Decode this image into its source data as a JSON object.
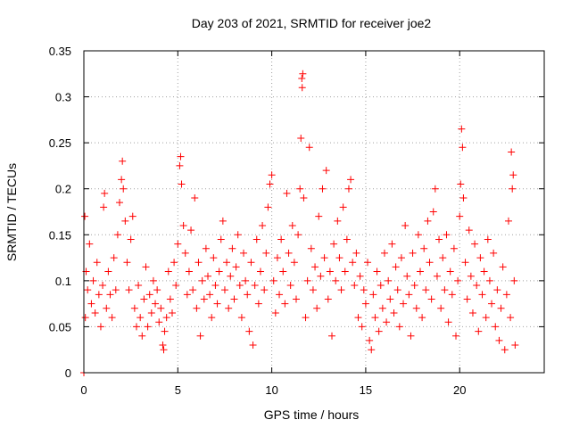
{
  "chart_data": {
    "type": "scatter",
    "title": "Day 203 of 2021, SRMTID for receiver joe2",
    "xlabel": "GPS time / hours",
    "ylabel": "SRMTID / TECUs",
    "xlim": [
      0,
      24.5
    ],
    "ylim": [
      0,
      0.35
    ],
    "x_ticks": [
      0,
      5,
      10,
      15,
      20
    ],
    "x_tick_labels": [
      "0",
      "5",
      "10",
      "15",
      "20"
    ],
    "y_ticks": [
      0,
      0.05,
      0.1,
      0.15,
      0.2,
      0.25,
      0.3,
      0.35
    ],
    "y_tick_labels": [
      "0",
      "0.05",
      "0.1",
      "0.15",
      "0.2",
      "0.25",
      "0.3",
      "0.35"
    ],
    "grid": true,
    "marker": "plus",
    "color": "#ff0000",
    "series": [
      {
        "name": "SRMTID",
        "points": [
          [
            0.0,
            0.0
          ],
          [
            0.05,
            0.17
          ],
          [
            0.08,
            0.06
          ],
          [
            0.12,
            0.11
          ],
          [
            0.2,
            0.09
          ],
          [
            0.3,
            0.14
          ],
          [
            0.4,
            0.075
          ],
          [
            0.5,
            0.1
          ],
          [
            0.6,
            0.065
          ],
          [
            0.7,
            0.12
          ],
          [
            0.8,
            0.085
          ],
          [
            0.9,
            0.05
          ],
          [
            1.0,
            0.095
          ],
          [
            1.05,
            0.18
          ],
          [
            1.1,
            0.195
          ],
          [
            1.2,
            0.07
          ],
          [
            1.3,
            0.11
          ],
          [
            1.4,
            0.085
          ],
          [
            1.5,
            0.06
          ],
          [
            1.6,
            0.125
          ],
          [
            1.7,
            0.09
          ],
          [
            1.8,
            0.15
          ],
          [
            1.9,
            0.185
          ],
          [
            2.0,
            0.21
          ],
          [
            2.05,
            0.23
          ],
          [
            2.1,
            0.2
          ],
          [
            2.2,
            0.165
          ],
          [
            2.3,
            0.12
          ],
          [
            2.4,
            0.09
          ],
          [
            2.5,
            0.145
          ],
          [
            2.6,
            0.17
          ],
          [
            2.7,
            0.07
          ],
          [
            2.8,
            0.05
          ],
          [
            2.9,
            0.095
          ],
          [
            3.0,
            0.06
          ],
          [
            3.1,
            0.04
          ],
          [
            3.2,
            0.08
          ],
          [
            3.3,
            0.115
          ],
          [
            3.4,
            0.05
          ],
          [
            3.5,
            0.085
          ],
          [
            3.6,
            0.065
          ],
          [
            3.7,
            0.1
          ],
          [
            3.8,
            0.075
          ],
          [
            3.9,
            0.09
          ],
          [
            4.0,
            0.055
          ],
          [
            4.1,
            0.07
          ],
          [
            4.2,
            0.03
          ],
          [
            4.25,
            0.025
          ],
          [
            4.3,
            0.045
          ],
          [
            4.4,
            0.06
          ],
          [
            4.5,
            0.11
          ],
          [
            4.6,
            0.08
          ],
          [
            4.7,
            0.065
          ],
          [
            4.8,
            0.12
          ],
          [
            4.9,
            0.095
          ],
          [
            5.0,
            0.14
          ],
          [
            5.1,
            0.225
          ],
          [
            5.15,
            0.235
          ],
          [
            5.2,
            0.205
          ],
          [
            5.3,
            0.16
          ],
          [
            5.4,
            0.13
          ],
          [
            5.5,
            0.085
          ],
          [
            5.6,
            0.11
          ],
          [
            5.7,
            0.155
          ],
          [
            5.8,
            0.09
          ],
          [
            5.9,
            0.19
          ],
          [
            6.0,
            0.07
          ],
          [
            6.1,
            0.12
          ],
          [
            6.2,
            0.04
          ],
          [
            6.3,
            0.1
          ],
          [
            6.4,
            0.08
          ],
          [
            6.5,
            0.135
          ],
          [
            6.6,
            0.105
          ],
          [
            6.7,
            0.085
          ],
          [
            6.8,
            0.06
          ],
          [
            6.9,
            0.125
          ],
          [
            7.0,
            0.095
          ],
          [
            7.1,
            0.075
          ],
          [
            7.2,
            0.11
          ],
          [
            7.3,
            0.145
          ],
          [
            7.4,
            0.165
          ],
          [
            7.5,
            0.09
          ],
          [
            7.6,
            0.12
          ],
          [
            7.7,
            0.07
          ],
          [
            7.8,
            0.105
          ],
          [
            7.9,
            0.135
          ],
          [
            8.0,
            0.08
          ],
          [
            8.1,
            0.115
          ],
          [
            8.2,
            0.15
          ],
          [
            8.3,
            0.095
          ],
          [
            8.4,
            0.06
          ],
          [
            8.5,
            0.13
          ],
          [
            8.6,
            0.1
          ],
          [
            8.7,
            0.085
          ],
          [
            8.8,
            0.045
          ],
          [
            8.9,
            0.12
          ],
          [
            9.0,
            0.03
          ],
          [
            9.1,
            0.095
          ],
          [
            9.2,
            0.145
          ],
          [
            9.3,
            0.075
          ],
          [
            9.4,
            0.11
          ],
          [
            9.5,
            0.16
          ],
          [
            9.6,
            0.09
          ],
          [
            9.7,
            0.13
          ],
          [
            9.8,
            0.18
          ],
          [
            9.9,
            0.205
          ],
          [
            10.0,
            0.215
          ],
          [
            10.1,
            0.1
          ],
          [
            10.2,
            0.065
          ],
          [
            10.3,
            0.125
          ],
          [
            10.4,
            0.085
          ],
          [
            10.5,
            0.145
          ],
          [
            10.6,
            0.11
          ],
          [
            10.7,
            0.075
          ],
          [
            10.8,
            0.195
          ],
          [
            10.9,
            0.13
          ],
          [
            11.0,
            0.095
          ],
          [
            11.1,
            0.16
          ],
          [
            11.2,
            0.12
          ],
          [
            11.3,
            0.08
          ],
          [
            11.4,
            0.15
          ],
          [
            11.5,
            0.2
          ],
          [
            11.55,
            0.255
          ],
          [
            11.6,
            0.32
          ],
          [
            11.62,
            0.31
          ],
          [
            11.65,
            0.325
          ],
          [
            11.7,
            0.19
          ],
          [
            11.8,
            0.06
          ],
          [
            11.9,
            0.1
          ],
          [
            12.0,
            0.245
          ],
          [
            12.1,
            0.135
          ],
          [
            12.2,
            0.09
          ],
          [
            12.3,
            0.115
          ],
          [
            12.4,
            0.07
          ],
          [
            12.5,
            0.17
          ],
          [
            12.6,
            0.105
          ],
          [
            12.7,
            0.2
          ],
          [
            12.8,
            0.125
          ],
          [
            12.9,
            0.22
          ],
          [
            13.0,
            0.08
          ],
          [
            13.1,
            0.11
          ],
          [
            13.2,
            0.04
          ],
          [
            13.3,
            0.14
          ],
          [
            13.4,
            0.1
          ],
          [
            13.5,
            0.165
          ],
          [
            13.6,
            0.125
          ],
          [
            13.7,
            0.09
          ],
          [
            13.8,
            0.18
          ],
          [
            13.9,
            0.11
          ],
          [
            14.0,
            0.145
          ],
          [
            14.1,
            0.2
          ],
          [
            14.2,
            0.21
          ],
          [
            14.3,
            0.12
          ],
          [
            14.4,
            0.095
          ],
          [
            14.5,
            0.13
          ],
          [
            14.6,
            0.06
          ],
          [
            14.7,
            0.105
          ],
          [
            14.8,
            0.05
          ],
          [
            14.9,
            0.09
          ],
          [
            15.0,
            0.075
          ],
          [
            15.1,
            0.12
          ],
          [
            15.2,
            0.035
          ],
          [
            15.3,
            0.025
          ],
          [
            15.4,
            0.085
          ],
          [
            15.5,
            0.06
          ],
          [
            15.6,
            0.11
          ],
          [
            15.7,
            0.045
          ],
          [
            15.8,
            0.095
          ],
          [
            15.9,
            0.07
          ],
          [
            16.0,
            0.13
          ],
          [
            16.1,
            0.055
          ],
          [
            16.2,
            0.1
          ],
          [
            16.3,
            0.08
          ],
          [
            16.4,
            0.14
          ],
          [
            16.5,
            0.065
          ],
          [
            16.6,
            0.115
          ],
          [
            16.7,
            0.09
          ],
          [
            16.8,
            0.05
          ],
          [
            16.9,
            0.125
          ],
          [
            17.0,
            0.075
          ],
          [
            17.1,
            0.16
          ],
          [
            17.2,
            0.105
          ],
          [
            17.3,
            0.085
          ],
          [
            17.4,
            0.04
          ],
          [
            17.5,
            0.13
          ],
          [
            17.6,
            0.095
          ],
          [
            17.7,
            0.07
          ],
          [
            17.8,
            0.15
          ],
          [
            17.9,
            0.11
          ],
          [
            18.0,
            0.06
          ],
          [
            18.1,
            0.135
          ],
          [
            18.2,
            0.09
          ],
          [
            18.3,
            0.165
          ],
          [
            18.4,
            0.12
          ],
          [
            18.5,
            0.08
          ],
          [
            18.6,
            0.175
          ],
          [
            18.7,
            0.2
          ],
          [
            18.8,
            0.105
          ],
          [
            18.9,
            0.145
          ],
          [
            19.0,
            0.07
          ],
          [
            19.1,
            0.125
          ],
          [
            19.2,
            0.09
          ],
          [
            19.3,
            0.15
          ],
          [
            19.4,
            0.055
          ],
          [
            19.5,
            0.11
          ],
          [
            19.6,
            0.085
          ],
          [
            19.7,
            0.135
          ],
          [
            19.8,
            0.04
          ],
          [
            19.9,
            0.1
          ],
          [
            20.0,
            0.17
          ],
          [
            20.05,
            0.205
          ],
          [
            20.1,
            0.265
          ],
          [
            20.15,
            0.245
          ],
          [
            20.2,
            0.19
          ],
          [
            20.3,
            0.12
          ],
          [
            20.4,
            0.08
          ],
          [
            20.5,
            0.155
          ],
          [
            20.6,
            0.105
          ],
          [
            20.7,
            0.065
          ],
          [
            20.8,
            0.14
          ],
          [
            20.9,
            0.095
          ],
          [
            21.0,
            0.045
          ],
          [
            21.1,
            0.125
          ],
          [
            21.2,
            0.085
          ],
          [
            21.3,
            0.11
          ],
          [
            21.4,
            0.06
          ],
          [
            21.5,
            0.145
          ],
          [
            21.6,
            0.1
          ],
          [
            21.7,
            0.075
          ],
          [
            21.8,
            0.13
          ],
          [
            21.9,
            0.05
          ],
          [
            22.0,
            0.09
          ],
          [
            22.1,
            0.035
          ],
          [
            22.2,
            0.07
          ],
          [
            22.3,
            0.115
          ],
          [
            22.4,
            0.025
          ],
          [
            22.5,
            0.085
          ],
          [
            22.6,
            0.165
          ],
          [
            22.7,
            0.06
          ],
          [
            22.75,
            0.24
          ],
          [
            22.8,
            0.2
          ],
          [
            22.85,
            0.215
          ],
          [
            22.9,
            0.1
          ],
          [
            22.95,
            0.03
          ]
        ]
      }
    ]
  }
}
